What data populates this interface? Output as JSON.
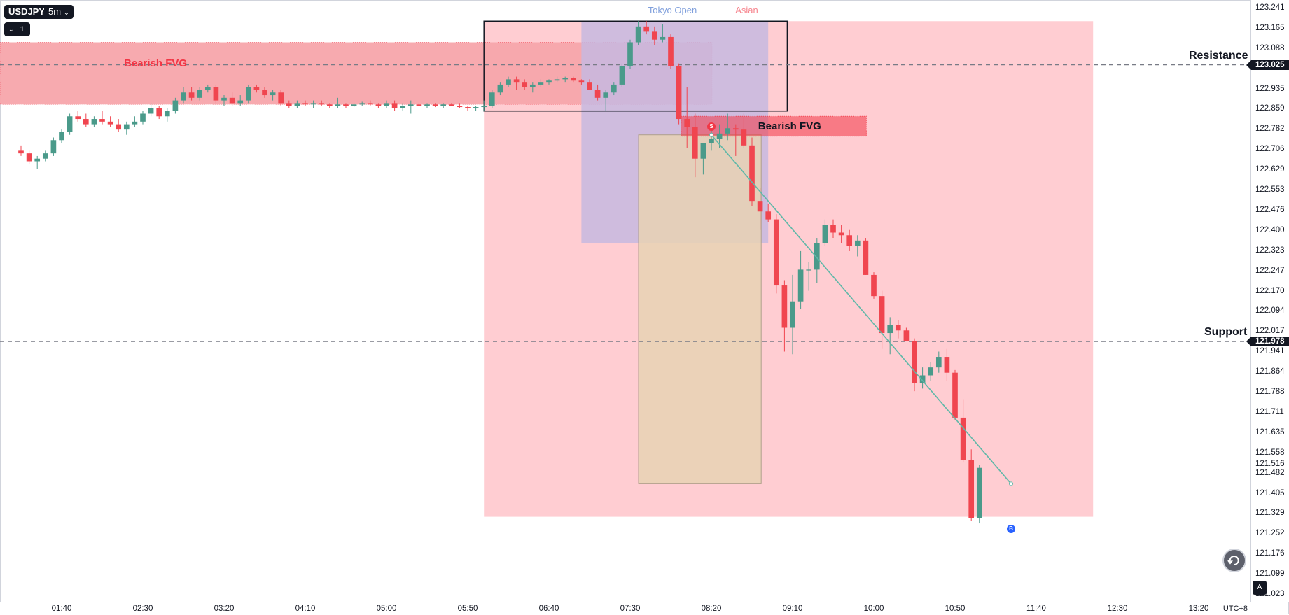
{
  "symbol": "USDJPY",
  "interval": "5m",
  "interval_chevron": "⌄",
  "layer_button": {
    "chevron": "⌄",
    "count": "1"
  },
  "colors": {
    "up": "#4a9a8a",
    "down": "#f23645",
    "down_fill": "#f0454f",
    "neutral": "#787b86",
    "fvg_fill": "#f7a5ab",
    "range_fill": "#ffcdd2",
    "session_fill": "#c7b8e0",
    "target_fill": "#e8d2b4",
    "dashed_level": "#787b86",
    "trend_line": "#5fb8a8",
    "marker_sell": "#f23645",
    "marker_buy": "#2962ff"
  },
  "sessions": {
    "tokyo_label": "Tokyo Open",
    "tokyo_color": "#7f9fdc",
    "asian_label": "Asian",
    "asian_color": "#f7868f"
  },
  "zones": {
    "fvg_left_label": "Bearish FVG",
    "fvg_right_label": "Bearish FVG"
  },
  "levels": {
    "resistance_label": "Resistance",
    "resistance_price": "123.025",
    "support_label": "Support",
    "support_price": "121.978",
    "last_price": "121.516"
  },
  "markers": {
    "sell_label": "S",
    "buy_label": "B"
  },
  "price_axis": [
    "123.241",
    "123.165",
    "123.088",
    "122.935",
    "122.859",
    "122.782",
    "122.706",
    "122.629",
    "122.553",
    "122.476",
    "122.400",
    "122.323",
    "122.247",
    "122.170",
    "122.094",
    "122.017",
    "121.941",
    "121.864",
    "121.788",
    "121.711",
    "121.635",
    "121.558",
    "121.482",
    "121.405",
    "121.329",
    "121.252",
    "121.176",
    "121.099",
    "121.023"
  ],
  "time_axis": [
    "01:40",
    "02:30",
    "03:20",
    "04:10",
    "05:00",
    "05:50",
    "06:40",
    "07:30",
    "08:20",
    "09:10",
    "10:00",
    "10:50",
    "11:40",
    "12:30",
    "13:20"
  ],
  "timezone": "UTC+8",
  "icons": {
    "replay": "reset-icon",
    "auto_scale": "auto-scale-icon"
  },
  "chart_data": {
    "type": "candlestick",
    "interval": "5m",
    "y_range": [
      121.0,
      123.26
    ],
    "x_start": "01:15",
    "candles": [
      [
        122.7,
        122.72,
        122.68,
        122.69
      ],
      [
        122.69,
        122.7,
        122.65,
        122.66
      ],
      [
        122.66,
        122.68,
        122.63,
        122.67
      ],
      [
        122.67,
        122.7,
        122.66,
        122.69
      ],
      [
        122.69,
        122.75,
        122.68,
        122.74
      ],
      [
        122.74,
        122.78,
        122.73,
        122.77
      ],
      [
        122.77,
        122.84,
        122.76,
        122.83
      ],
      [
        122.83,
        122.85,
        122.81,
        122.82
      ],
      [
        122.82,
        122.84,
        122.79,
        122.8
      ],
      [
        122.8,
        122.83,
        122.79,
        122.82
      ],
      [
        122.82,
        122.85,
        122.8,
        122.81
      ],
      [
        122.81,
        122.83,
        122.79,
        122.8
      ],
      [
        122.8,
        122.82,
        122.77,
        122.78
      ],
      [
        122.78,
        122.81,
        122.76,
        122.8
      ],
      [
        122.8,
        122.83,
        122.79,
        122.81
      ],
      [
        122.81,
        122.85,
        122.8,
        122.84
      ],
      [
        122.84,
        122.88,
        122.83,
        122.86
      ],
      [
        122.86,
        122.87,
        122.82,
        122.83
      ],
      [
        122.83,
        122.86,
        122.81,
        122.85
      ],
      [
        122.85,
        122.9,
        122.84,
        122.89
      ],
      [
        122.89,
        122.94,
        122.88,
        122.92
      ],
      [
        122.92,
        122.94,
        122.89,
        122.9
      ],
      [
        122.9,
        122.94,
        122.89,
        122.93
      ],
      [
        122.93,
        122.95,
        122.92,
        122.94
      ],
      [
        122.94,
        122.95,
        122.88,
        122.89
      ],
      [
        122.89,
        122.91,
        122.87,
        122.9
      ],
      [
        122.9,
        122.92,
        122.87,
        122.88
      ],
      [
        122.88,
        122.91,
        122.87,
        122.89
      ],
      [
        122.89,
        122.95,
        122.88,
        122.94
      ],
      [
        122.94,
        122.95,
        122.92,
        122.93
      ],
      [
        122.93,
        122.94,
        122.9,
        122.91
      ],
      [
        122.91,
        122.93,
        122.89,
        122.92
      ],
      [
        122.92,
        122.93,
        122.87,
        122.88
      ],
      [
        122.88,
        122.89,
        122.86,
        122.87
      ],
      [
        122.87,
        122.89,
        122.86,
        122.88
      ],
      [
        122.88,
        122.89,
        122.87,
        122.875
      ],
      [
        122.875,
        122.89,
        122.86,
        122.88
      ],
      [
        122.88,
        122.89,
        122.87,
        122.875
      ],
      [
        122.875,
        122.88,
        122.86,
        122.87
      ],
      [
        122.87,
        122.9,
        122.86,
        122.875
      ],
      [
        122.875,
        122.88,
        122.86,
        122.87
      ],
      [
        122.87,
        122.88,
        122.865,
        122.875
      ],
      [
        122.875,
        122.885,
        122.87,
        122.88
      ],
      [
        122.88,
        122.89,
        122.87,
        122.875
      ],
      [
        122.875,
        122.88,
        122.86,
        122.87
      ],
      [
        122.87,
        122.89,
        122.86,
        122.88
      ],
      [
        122.88,
        122.89,
        122.85,
        122.86
      ],
      [
        122.86,
        122.88,
        122.85,
        122.87
      ],
      [
        122.87,
        122.89,
        122.84,
        122.875
      ],
      [
        122.875,
        122.88,
        122.87,
        122.87
      ],
      [
        122.87,
        122.88,
        122.86,
        122.875
      ],
      [
        122.875,
        122.88,
        122.865,
        122.87
      ],
      [
        122.87,
        122.88,
        122.86,
        122.875
      ],
      [
        122.875,
        122.88,
        122.87,
        122.87
      ],
      [
        122.87,
        122.88,
        122.86,
        122.865
      ],
      [
        122.865,
        122.87,
        122.85,
        122.86
      ],
      [
        122.86,
        122.87,
        122.85,
        122.865
      ],
      [
        122.865,
        122.89,
        122.85,
        122.87
      ],
      [
        122.87,
        122.93,
        122.86,
        122.92
      ],
      [
        122.92,
        122.96,
        122.91,
        122.95
      ],
      [
        122.95,
        122.98,
        122.94,
        122.97
      ],
      [
        122.97,
        122.98,
        122.93,
        122.96
      ],
      [
        122.96,
        122.97,
        122.93,
        122.94
      ],
      [
        122.94,
        122.96,
        122.92,
        122.95
      ],
      [
        122.95,
        122.97,
        122.94,
        122.96
      ],
      [
        122.96,
        122.97,
        122.95,
        122.965
      ],
      [
        122.965,
        122.98,
        122.96,
        122.97
      ],
      [
        122.97,
        122.98,
        122.96,
        122.975
      ],
      [
        122.975,
        122.98,
        122.96,
        122.965
      ],
      [
        122.965,
        122.97,
        122.95,
        122.96
      ],
      [
        122.96,
        122.97,
        122.93,
        122.93
      ],
      [
        122.93,
        122.95,
        122.89,
        122.9
      ],
      [
        122.9,
        122.93,
        122.85,
        122.92
      ],
      [
        122.92,
        122.96,
        122.91,
        122.95
      ],
      [
        122.95,
        123.03,
        122.94,
        123.02
      ],
      [
        123.02,
        123.12,
        123.01,
        123.11
      ],
      [
        123.11,
        123.19,
        123.1,
        123.17
      ],
      [
        123.17,
        123.19,
        123.14,
        123.15
      ],
      [
        123.15,
        123.17,
        123.1,
        123.12
      ],
      [
        123.12,
        123.18,
        123.11,
        123.13
      ],
      [
        123.13,
        123.14,
        123.01,
        123.02
      ],
      [
        123.02,
        123.03,
        122.8,
        122.82
      ],
      [
        122.82,
        122.94,
        122.71,
        122.79
      ],
      [
        122.79,
        122.84,
        122.6,
        122.67
      ],
      [
        122.67,
        122.72,
        122.61,
        122.73
      ],
      [
        122.73,
        122.78,
        122.7,
        122.745
      ],
      [
        122.745,
        122.8,
        122.71,
        122.765
      ],
      [
        122.765,
        122.84,
        122.74,
        122.785
      ],
      [
        122.785,
        122.8,
        122.68,
        122.78
      ],
      [
        122.78,
        122.84,
        122.71,
        122.72
      ],
      [
        122.72,
        122.75,
        122.49,
        122.51
      ],
      [
        122.51,
        122.56,
        122.4,
        122.47
      ],
      [
        122.47,
        122.5,
        122.43,
        122.44
      ],
      [
        122.44,
        122.46,
        122.16,
        122.19
      ],
      [
        122.19,
        122.21,
        121.94,
        122.03
      ],
      [
        122.03,
        122.23,
        121.93,
        122.13
      ],
      [
        122.13,
        122.32,
        122.1,
        122.25
      ],
      [
        122.25,
        122.28,
        122.17,
        122.25
      ],
      [
        122.25,
        122.37,
        122.2,
        122.35
      ],
      [
        122.35,
        122.44,
        122.34,
        122.42
      ],
      [
        122.42,
        122.44,
        122.37,
        122.39
      ],
      [
        122.39,
        122.42,
        122.35,
        122.38
      ],
      [
        122.38,
        122.4,
        122.32,
        122.34
      ],
      [
        122.34,
        122.38,
        122.3,
        122.36
      ],
      [
        122.36,
        122.37,
        122.23,
        122.23
      ],
      [
        122.23,
        122.24,
        122.14,
        122.15
      ],
      [
        122.15,
        122.17,
        121.95,
        122.01
      ],
      [
        122.01,
        122.07,
        121.93,
        122.04
      ],
      [
        122.04,
        122.06,
        121.99,
        122.02
      ],
      [
        122.02,
        122.03,
        121.98,
        121.98
      ],
      [
        121.98,
        121.99,
        121.79,
        121.82
      ],
      [
        121.82,
        121.88,
        121.8,
        121.85
      ],
      [
        121.85,
        121.9,
        121.83,
        121.88
      ],
      [
        121.88,
        121.94,
        121.86,
        121.92
      ],
      [
        121.92,
        121.95,
        121.83,
        121.86
      ],
      [
        121.86,
        121.87,
        121.68,
        121.69
      ],
      [
        121.69,
        121.76,
        121.52,
        121.53
      ],
      [
        121.53,
        121.57,
        121.3,
        121.31
      ],
      [
        121.31,
        121.51,
        121.29,
        121.5
      ]
    ],
    "horizontal_levels": [
      {
        "label": "Resistance",
        "price": 123.025
      },
      {
        "label": "Support",
        "price": 121.978
      }
    ],
    "zones": [
      {
        "label": "Bearish FVG",
        "from_time": "01:15",
        "to_time": "08:20",
        "price_low": 122.875,
        "price_high": 123.11
      },
      {
        "label": "Bearish FVG",
        "from_time": "08:10",
        "to_time": "09:55",
        "price_low": 122.755,
        "price_high": 122.83
      },
      {
        "label": "Tokyo Open",
        "from_time": "07:00",
        "to_time": "08:55",
        "price_low": 122.35,
        "price_high": 123.19
      },
      {
        "label": "Asian",
        "from_time": "06:00",
        "to_time": "12:15",
        "price_low": 121.315,
        "price_high": 123.19
      }
    ],
    "trend_line": {
      "from_time": "08:20",
      "from_price": 122.76,
      "to_time": "11:15",
      "to_price": 121.44
    },
    "trade_markers": [
      {
        "label": "S",
        "time": "08:20",
        "price": 122.79
      },
      {
        "label": "B",
        "time": "11:15",
        "price": 121.27
      }
    ]
  }
}
